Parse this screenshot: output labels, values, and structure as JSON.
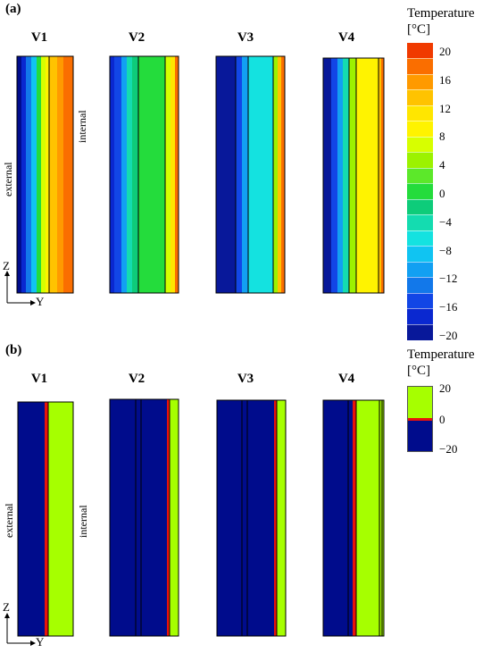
{
  "panel_a": {
    "label": "(a)",
    "columns": [
      "V1",
      "V2",
      "V3",
      "V4"
    ],
    "side_external": "external",
    "side_internal": "internal",
    "axis_z": "Z",
    "axis_y": "Y",
    "colorbar": {
      "title_line1": "Temperature",
      "title_line2": "[°C]",
      "ticks": [
        "20",
        "16",
        "12",
        "8",
        "4",
        "0",
        "−4",
        "−8",
        "−12",
        "−16",
        "−20"
      ],
      "colors": [
        "#f03a00",
        "#fa6e00",
        "#ff9a00",
        "#ffc300",
        "#ffe600",
        "#fff300",
        "#d7ff00",
        "#9cf200",
        "#5ce82a",
        "#24dc3c",
        "#0ecc7a",
        "#14dcb0",
        "#14e2e0",
        "#10c4f2",
        "#12a0f2",
        "#1278ea",
        "#1246e6",
        "#0a28d0",
        "#08189a"
      ]
    }
  },
  "panel_b": {
    "label": "(b)",
    "columns": [
      "V1",
      "V2",
      "V3",
      "V4"
    ],
    "side_external": "external",
    "side_internal": "internal",
    "axis_z": "Z",
    "axis_y": "Y",
    "colorbar": {
      "title_line1": "Temperature",
      "title_line2": "[°C]",
      "ticks": [
        "20",
        "0",
        "−20"
      ],
      "color_warm": "#a6ff00",
      "color_cold": "#000c8c",
      "color_zero": "#e8120c"
    }
  }
}
